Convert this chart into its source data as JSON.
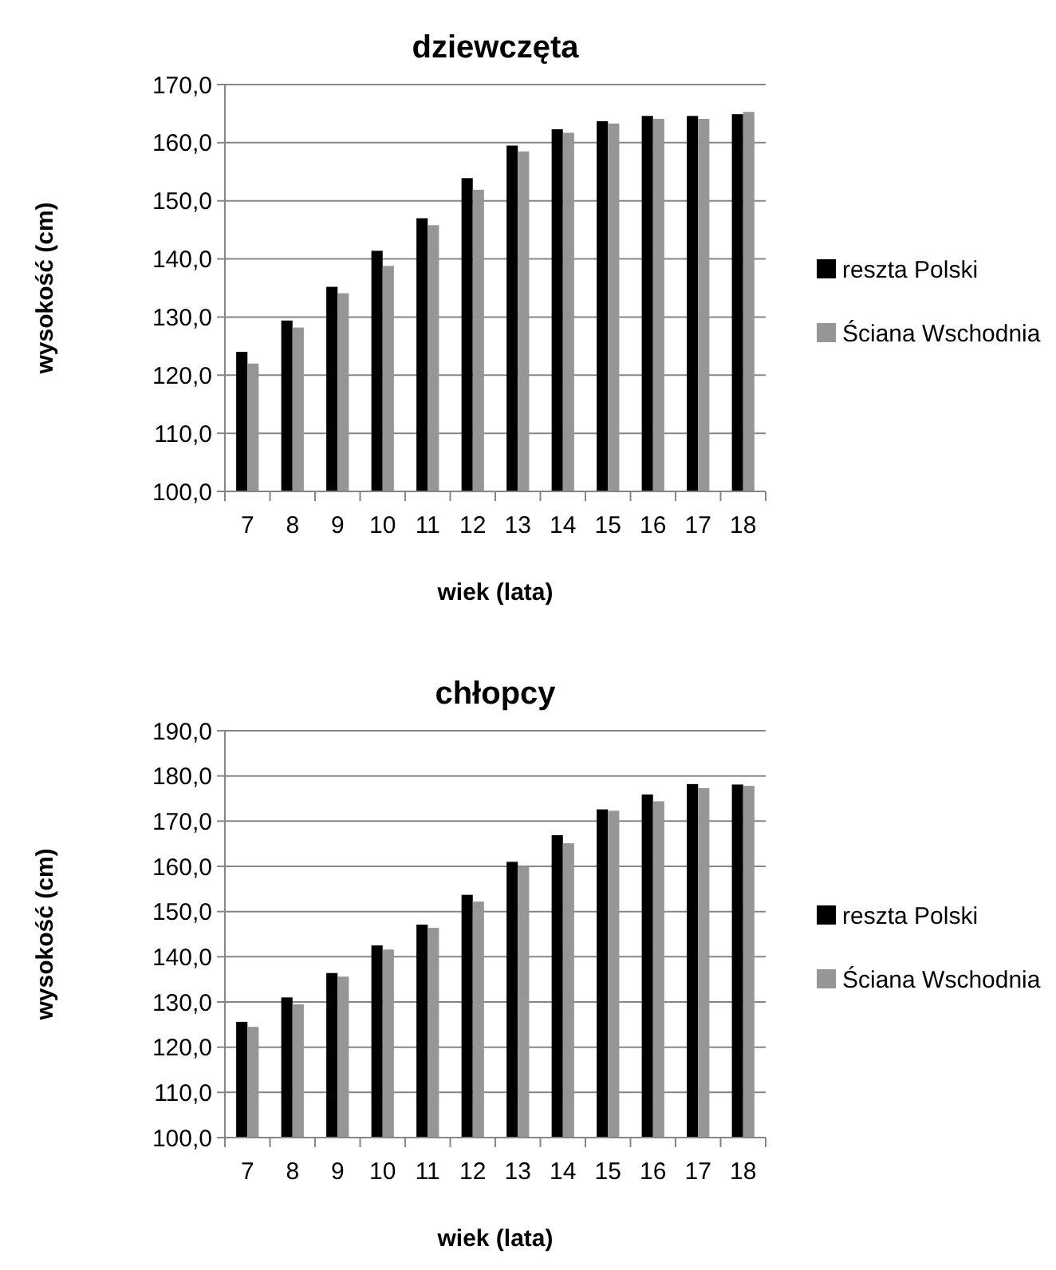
{
  "chart_data": [
    {
      "type": "bar",
      "title": "dziewczęta",
      "xlabel": "wiek (lata)",
      "ylabel": "wysokość (cm)",
      "categories": [
        "7",
        "8",
        "9",
        "10",
        "11",
        "12",
        "13",
        "14",
        "15",
        "16",
        "17",
        "18"
      ],
      "series": [
        {
          "name": "reszta Polski",
          "color": "#000000",
          "values": [
            124.0,
            129.4,
            135.2,
            141.4,
            147.0,
            153.9,
            159.5,
            162.3,
            163.7,
            164.6,
            164.6,
            164.9
          ]
        },
        {
          "name": "Ściana Wschodnia",
          "color": "#969696",
          "values": [
            122.0,
            128.2,
            134.1,
            138.8,
            145.8,
            151.9,
            158.5,
            161.7,
            163.3,
            164.1,
            164.1,
            165.3
          ]
        }
      ],
      "ylim": [
        100,
        170
      ],
      "yticks": [
        {
          "value": 100,
          "label": "100,0"
        },
        {
          "value": 110,
          "label": "110,0"
        },
        {
          "value": 120,
          "label": "120,0"
        },
        {
          "value": 130,
          "label": "130,0"
        },
        {
          "value": 140,
          "label": "140,0"
        },
        {
          "value": 150,
          "label": "150,0"
        },
        {
          "value": 160,
          "label": "160,0"
        },
        {
          "value": 170,
          "label": "170,0"
        }
      ],
      "grid": "y",
      "legend": "right"
    },
    {
      "type": "bar",
      "title": "chłopcy",
      "xlabel": "wiek (lata)",
      "ylabel": "wysokość (cm)",
      "categories": [
        "7",
        "8",
        "9",
        "10",
        "11",
        "12",
        "13",
        "14",
        "15",
        "16",
        "17",
        "18"
      ],
      "series": [
        {
          "name": "reszta Polski",
          "color": "#000000",
          "values": [
            125.6,
            131.0,
            136.4,
            142.5,
            147.1,
            153.7,
            161.0,
            166.9,
            172.6,
            175.9,
            178.2,
            178.1
          ]
        },
        {
          "name": "Ściana Wschodnia",
          "color": "#969696",
          "values": [
            124.5,
            129.5,
            135.6,
            141.6,
            146.4,
            152.2,
            159.9,
            165.1,
            172.3,
            174.4,
            177.3,
            177.8
          ]
        }
      ],
      "ylim": [
        100,
        190
      ],
      "yticks": [
        {
          "value": 100,
          "label": "100,0"
        },
        {
          "value": 110,
          "label": "110,0"
        },
        {
          "value": 120,
          "label": "120,0"
        },
        {
          "value": 130,
          "label": "130,0"
        },
        {
          "value": 140,
          "label": "140,0"
        },
        {
          "value": 150,
          "label": "150,0"
        },
        {
          "value": 160,
          "label": "160,0"
        },
        {
          "value": 170,
          "label": "170,0"
        },
        {
          "value": 180,
          "label": "180,0"
        },
        {
          "value": 190,
          "label": "190,0"
        }
      ],
      "grid": "y",
      "legend": "right"
    }
  ]
}
